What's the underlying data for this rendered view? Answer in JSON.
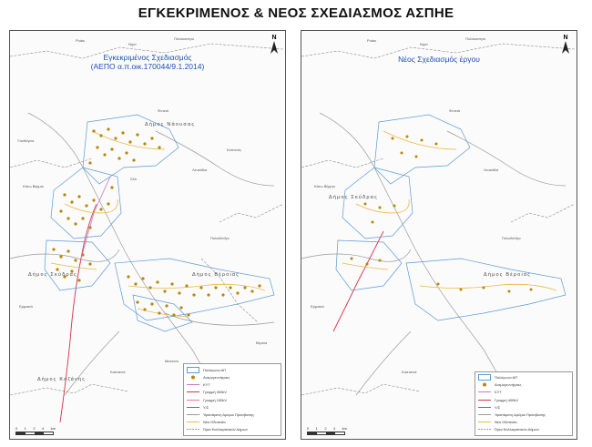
{
  "main_title": "ΕΓΚΕΚΡΙΜΕΝΟΣ & ΝΕΟΣ ΣΧΕΔΙΑΣΜΟΣ ΑΣΠΗΕ",
  "left_map": {
    "title_line1": "Εγκεκριμένος Σχεδιασμός",
    "title_line2": "(ΑΕΠΟ α.π.οικ.170044/9.1.2014)",
    "municipality_labels": [
      "Δήμος Νάουσας",
      "Δήμος Σκύδρας",
      "Δήμος Βέροιας",
      "Δήμος Κοζάνης"
    ],
    "place_labels": [
      "Ρυάκι",
      "Νησί",
      "Πολύκαστρο",
      "Φυτειά",
      "Ξανθόγεια",
      "Κοπανός",
      "Λευκάδια",
      "Σέλι",
      "Κάτω Βέρμιο",
      "Πολυδένδρι",
      "Μεσιανό",
      "Καστανιά",
      "Βέροια",
      "Ερμακιά"
    ],
    "legend": [
      {
        "label": "Πολύγωνα ΑΠ",
        "symbol": "polygon",
        "color": "#5b9bd5"
      },
      {
        "label": "Ανεμογεννήτριες",
        "symbol": "dot",
        "color": "#b8860b"
      },
      {
        "label": "ΚΥΤ",
        "symbol": "line",
        "color": "#c678c8"
      },
      {
        "label": "Γραμμή 400kV",
        "symbol": "line",
        "color": "#d9304a"
      },
      {
        "label": "Γραμμή 150kV",
        "symbol": "line",
        "color": "#e87aa0"
      },
      {
        "label": "Υ/Σ",
        "symbol": "line",
        "color": "#a64ca6"
      },
      {
        "label": "Υφιστάμενη Δρόμοι Πρόσβασης",
        "symbol": "line",
        "color": "#9a9a9a"
      },
      {
        "label": "Νέα Οδοποιία",
        "symbol": "line",
        "color": "#e8b84a"
      },
      {
        "label": "Όρια Καλλικρατικών Δήμων",
        "symbol": "dash",
        "color": "#777777"
      }
    ]
  },
  "right_map": {
    "title": "Νέος Σχεδιασμός έργου",
    "municipality_labels": [
      "Δήμος Σκύδρας",
      "Δήμος Βέροιας"
    ],
    "place_labels": [
      "Ρυάκι",
      "Νησί",
      "Πολύκαστρο",
      "Φυτειά",
      "Λευκάδια",
      "Κάτω Βέρμιο",
      "Πολυδένδρι",
      "Καστανιά",
      "Ερμακιά"
    ],
    "legend": [
      {
        "label": "Πολύγωνα ΑΠ",
        "symbol": "polygon",
        "color": "#5b9bd5"
      },
      {
        "label": "Ανεμογεννήτριες",
        "symbol": "dot",
        "color": "#b8860b"
      },
      {
        "label": "ΚΥΤ",
        "symbol": "line",
        "color": "#c678c8"
      },
      {
        "label": "Γραμμή 400kV",
        "symbol": "line",
        "color": "#d9304a"
      },
      {
        "label": "Υ/Σ",
        "symbol": "line",
        "color": "#a64ca6"
      },
      {
        "label": "Υφιστάμενη Δρόμοι Πρόσβασης",
        "symbol": "line",
        "color": "#9a9a9a"
      },
      {
        "label": "Νέα Οδοποιία",
        "symbol": "line",
        "color": "#e8b84a"
      },
      {
        "label": "Όρια Καλλικρατικών Δήμων",
        "symbol": "dash",
        "color": "#777777"
      }
    ]
  },
  "north_label": "N",
  "scale_ticks": [
    "0",
    "1",
    "2",
    "4"
  ],
  "scale_unit": "km",
  "colors": {
    "polygon": "#5b9bd5",
    "turbine": "#b8860b",
    "road_new": "#e8b84a",
    "road_existing": "#9a9a9a",
    "line_400": "#d9304a",
    "title": "#1f4fb5"
  }
}
